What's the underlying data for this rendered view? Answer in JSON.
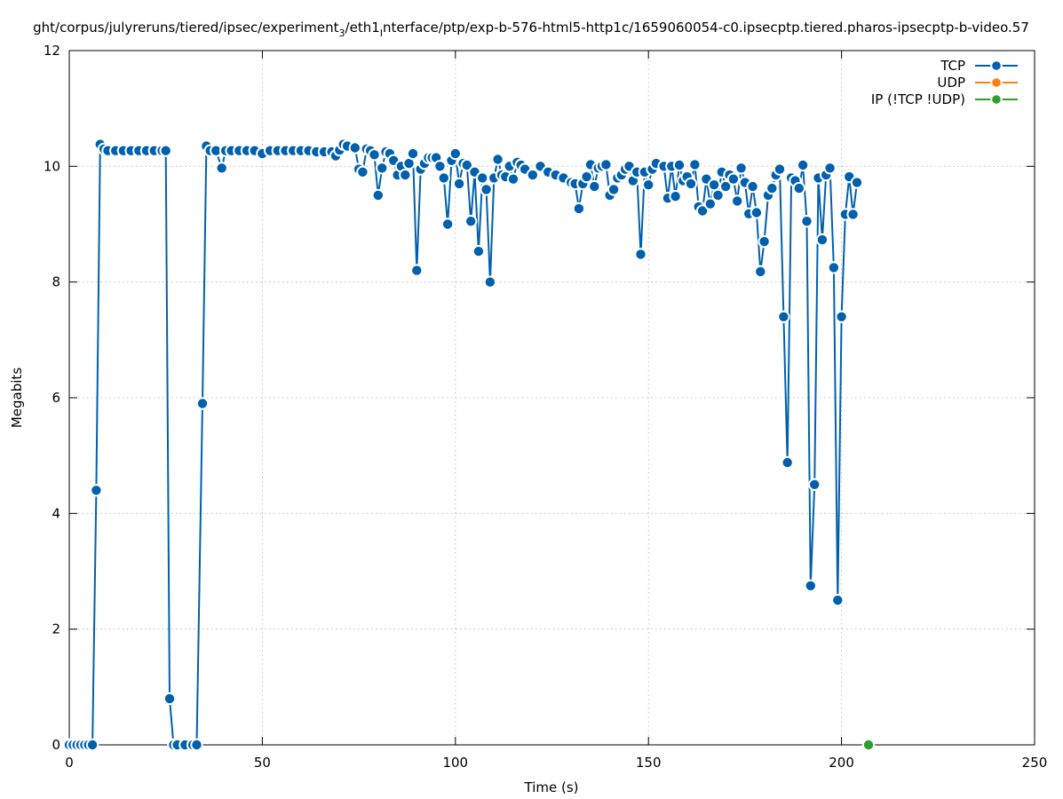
{
  "chart_data": {
    "type": "line",
    "title": "ght/corpus/julyreruns/tiered/ipsec/experiment",
    "title_sub": "3",
    "title_mid": "/eth1",
    "title_sub2": "I",
    "title_rest": "nterface/ptp/exp-b-576-html5-http1c/1659060054-c0.ipsecptp.tiered.pharos-ipsecptp-b-video.57",
    "xlabel": "Time (s)",
    "ylabel": "Megabits",
    "xlim": [
      0,
      250
    ],
    "ylim": [
      0,
      12
    ],
    "xticks": [
      0,
      50,
      100,
      150,
      200,
      250
    ],
    "yticks": [
      0,
      2,
      4,
      6,
      8,
      10,
      12
    ],
    "xtick_labels": [
      "0",
      "50",
      "100",
      "150",
      "200",
      "250"
    ],
    "ytick_labels": [
      "0",
      "2",
      "4",
      "6",
      "8",
      "10",
      "12"
    ],
    "grid": true,
    "legend_position": "top-right",
    "series": [
      {
        "name": "TCP",
        "color": "#0060ad",
        "points": [
          [
            0,
            0
          ],
          [
            1,
            0
          ],
          [
            2,
            0
          ],
          [
            3,
            0
          ],
          [
            4,
            0
          ],
          [
            5,
            0
          ],
          [
            6,
            0
          ],
          [
            7,
            4.4
          ],
          [
            8,
            10.38
          ],
          [
            9,
            10.3
          ],
          [
            10,
            10.27
          ],
          [
            12,
            10.27
          ],
          [
            14,
            10.27
          ],
          [
            16,
            10.27
          ],
          [
            18,
            10.27
          ],
          [
            20,
            10.27
          ],
          [
            22,
            10.27
          ],
          [
            24,
            10.27
          ],
          [
            25,
            10.27
          ],
          [
            26,
            0.8
          ],
          [
            27,
            0
          ],
          [
            28,
            0
          ],
          [
            30,
            0
          ],
          [
            32,
            0
          ],
          [
            33,
            0
          ],
          [
            34.5,
            5.9
          ],
          [
            35.5,
            10.35
          ],
          [
            36.5,
            10.27
          ],
          [
            38,
            10.27
          ],
          [
            39.5,
            9.97
          ],
          [
            40.5,
            10.27
          ],
          [
            42,
            10.27
          ],
          [
            44,
            10.27
          ],
          [
            46,
            10.27
          ],
          [
            48,
            10.27
          ],
          [
            50,
            10.22
          ],
          [
            52,
            10.27
          ],
          [
            54,
            10.27
          ],
          [
            56,
            10.27
          ],
          [
            58,
            10.27
          ],
          [
            60,
            10.27
          ],
          [
            62,
            10.27
          ],
          [
            64,
            10.25
          ],
          [
            66,
            10.25
          ],
          [
            68,
            10.25
          ],
          [
            69,
            10.18
          ],
          [
            70,
            10.28
          ],
          [
            71,
            10.38
          ],
          [
            72,
            10.35
          ],
          [
            74,
            10.32
          ],
          [
            75,
            9.95
          ],
          [
            76,
            9.9
          ],
          [
            77,
            10.3
          ],
          [
            78,
            10.27
          ],
          [
            79,
            10.2
          ],
          [
            80,
            9.5
          ],
          [
            81,
            9.97
          ],
          [
            82,
            10.25
          ],
          [
            83,
            10.22
          ],
          [
            84,
            10.1
          ],
          [
            85,
            9.85
          ],
          [
            86,
            10.0
          ],
          [
            87,
            9.85
          ],
          [
            88,
            10.05
          ],
          [
            89,
            10.22
          ],
          [
            90,
            8.2
          ],
          [
            91,
            9.95
          ],
          [
            92,
            10.05
          ],
          [
            93,
            10.15
          ],
          [
            94,
            10.15
          ],
          [
            95,
            10.15
          ],
          [
            96,
            10.0
          ],
          [
            97,
            9.8
          ],
          [
            98,
            9.0
          ],
          [
            99,
            10.1
          ],
          [
            100,
            10.22
          ],
          [
            101,
            9.7
          ],
          [
            102,
            10.05
          ],
          [
            103,
            10.02
          ],
          [
            104,
            9.05
          ],
          [
            105,
            9.9
          ],
          [
            106,
            8.53
          ],
          [
            107,
            9.8
          ],
          [
            108,
            9.6
          ],
          [
            109,
            8.0
          ],
          [
            110,
            9.8
          ],
          [
            111,
            10.12
          ],
          [
            112,
            9.85
          ],
          [
            113,
            9.82
          ],
          [
            114,
            10.0
          ],
          [
            115,
            9.78
          ],
          [
            116,
            10.07
          ],
          [
            117,
            10.02
          ],
          [
            118,
            9.95
          ],
          [
            120,
            9.85
          ],
          [
            122,
            10.0
          ],
          [
            124,
            9.9
          ],
          [
            126,
            9.85
          ],
          [
            128,
            9.8
          ],
          [
            130,
            9.72
          ],
          [
            131,
            9.7
          ],
          [
            132,
            9.27
          ],
          [
            133,
            9.7
          ],
          [
            134,
            9.82
          ],
          [
            135,
            10.03
          ],
          [
            136,
            9.65
          ],
          [
            137,
            9.97
          ],
          [
            138,
            10.0
          ],
          [
            139,
            10.03
          ],
          [
            140,
            9.5
          ],
          [
            141,
            9.6
          ],
          [
            142,
            9.8
          ],
          [
            143,
            9.85
          ],
          [
            144,
            9.95
          ],
          [
            145,
            10.0
          ],
          [
            146,
            9.75
          ],
          [
            147,
            9.9
          ],
          [
            148,
            8.48
          ],
          [
            149,
            9.9
          ],
          [
            150,
            9.68
          ],
          [
            151,
            9.95
          ],
          [
            152,
            10.05
          ],
          [
            154,
            10.0
          ],
          [
            155,
            9.45
          ],
          [
            156,
            10.0
          ],
          [
            157,
            9.48
          ],
          [
            158,
            10.02
          ],
          [
            159,
            9.75
          ],
          [
            160,
            9.82
          ],
          [
            161,
            9.7
          ],
          [
            162,
            10.03
          ],
          [
            163,
            9.3
          ],
          [
            164,
            9.23
          ],
          [
            165,
            9.78
          ],
          [
            166,
            9.35
          ],
          [
            167,
            9.68
          ],
          [
            168,
            9.5
          ],
          [
            169,
            9.9
          ],
          [
            170,
            9.65
          ],
          [
            171,
            9.85
          ],
          [
            172,
            9.78
          ],
          [
            173,
            9.4
          ],
          [
            174,
            9.97
          ],
          [
            175,
            9.72
          ],
          [
            176,
            9.18
          ],
          [
            177,
            9.65
          ],
          [
            178,
            9.2
          ],
          [
            179,
            8.18
          ],
          [
            180,
            8.7
          ],
          [
            181,
            9.5
          ],
          [
            182,
            9.62
          ],
          [
            183,
            9.85
          ],
          [
            184,
            9.95
          ],
          [
            185,
            7.4
          ],
          [
            186,
            4.88
          ],
          [
            187,
            9.8
          ],
          [
            188,
            9.75
          ],
          [
            189,
            9.62
          ],
          [
            190,
            10.02
          ],
          [
            191,
            9.05
          ],
          [
            192,
            2.75
          ],
          [
            193,
            4.5
          ],
          [
            194,
            9.8
          ],
          [
            195,
            8.73
          ],
          [
            196,
            9.85
          ],
          [
            197,
            9.97
          ],
          [
            198,
            8.25
          ],
          [
            199,
            2.5
          ],
          [
            200,
            7.4
          ],
          [
            201,
            9.17
          ],
          [
            202,
            9.82
          ],
          [
            203,
            9.17
          ],
          [
            204,
            9.72
          ]
        ]
      },
      {
        "name": "UDP",
        "color": "#ff7f0e",
        "points": []
      },
      {
        "name": "IP (!TCP  !UDP)",
        "color": "#2ca02c",
        "points": [
          [
            207,
            0
          ]
        ]
      }
    ]
  }
}
